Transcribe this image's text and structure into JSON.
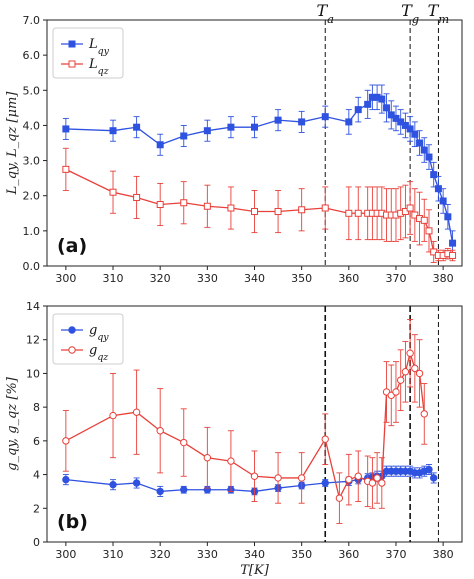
{
  "chart_data": [
    {
      "type": "line",
      "panel_label": "(a)",
      "ylabel": "L_qy, L_qz [μm]",
      "xlim": [
        296,
        384
      ],
      "ylim": [
        0,
        7
      ],
      "xticks": [
        300,
        310,
        320,
        330,
        340,
        350,
        360,
        370,
        380
      ],
      "yticks": [
        "0.0",
        "1.0",
        "2.0",
        "3.0",
        "4.0",
        "5.0",
        "6.0",
        "7.0"
      ],
      "legend_position": "top-left",
      "vlines": [
        {
          "x": 355,
          "label_main": "T",
          "label_sub": "a"
        },
        {
          "x": 373,
          "label_main": "T",
          "label_sub": "g"
        },
        {
          "x": 379,
          "label_main": "T",
          "label_sub": "m"
        }
      ],
      "series": [
        {
          "name_main": "L",
          "name_sub": "qy",
          "color": "#2f52e0",
          "marker": "square-filled",
          "x": [
            300,
            310,
            315,
            320,
            325,
            330,
            335,
            340,
            345,
            350,
            355,
            360,
            362,
            364,
            365,
            366,
            367,
            368,
            369,
            370,
            371,
            372,
            373,
            374,
            375,
            376,
            377,
            378,
            379,
            380,
            381,
            382
          ],
          "y": [
            3.9,
            3.85,
            3.95,
            3.45,
            3.7,
            3.85,
            3.95,
            3.95,
            4.15,
            4.1,
            4.25,
            4.1,
            4.45,
            4.6,
            4.8,
            4.8,
            4.75,
            4.5,
            4.3,
            4.2,
            4.1,
            4.0,
            3.9,
            3.75,
            3.5,
            3.3,
            3.1,
            2.6,
            2.2,
            1.85,
            1.4,
            0.65
          ],
          "err": [
            0.3,
            0.3,
            0.3,
            0.3,
            0.3,
            0.3,
            0.3,
            0.3,
            0.3,
            0.3,
            0.3,
            0.35,
            0.35,
            0.4,
            0.35,
            0.35,
            0.4,
            0.4,
            0.4,
            0.35,
            0.35,
            0.35,
            0.35,
            0.35,
            0.35,
            0.35,
            0.35,
            0.35,
            0.35,
            0.35,
            0.35,
            0.35
          ]
        },
        {
          "name_main": "L",
          "name_sub": "qz",
          "color": "#e8403a",
          "marker": "square-open",
          "x": [
            300,
            310,
            315,
            320,
            325,
            330,
            335,
            340,
            345,
            350,
            355,
            360,
            362,
            364,
            365,
            366,
            367,
            368,
            369,
            370,
            371,
            372,
            373,
            374,
            375,
            376,
            377,
            378,
            379,
            380,
            381,
            382
          ],
          "y": [
            2.75,
            2.1,
            1.95,
            1.75,
            1.8,
            1.7,
            1.65,
            1.55,
            1.55,
            1.6,
            1.65,
            1.5,
            1.5,
            1.5,
            1.5,
            1.5,
            1.5,
            1.45,
            1.45,
            1.45,
            1.5,
            1.55,
            1.65,
            1.45,
            1.35,
            1.3,
            1.0,
            0.4,
            0.3,
            0.3,
            0.35,
            0.3
          ],
          "err": [
            0.6,
            0.6,
            0.6,
            0.6,
            0.6,
            0.6,
            0.6,
            0.6,
            0.6,
            0.6,
            0.6,
            0.75,
            0.75,
            0.75,
            0.75,
            0.75,
            0.75,
            0.75,
            0.75,
            0.75,
            0.75,
            0.75,
            0.75,
            0.75,
            0.75,
            0.6,
            0.6,
            0.3,
            0.15,
            0.15,
            0.15,
            0.15
          ]
        }
      ]
    },
    {
      "type": "line",
      "panel_label": "(b)",
      "xlabel": "T[K]",
      "ylabel": "g_qy, g_qz [%]",
      "xlim": [
        296,
        384
      ],
      "ylim": [
        0,
        14
      ],
      "xticks": [
        300,
        310,
        320,
        330,
        340,
        350,
        360,
        370,
        380
      ],
      "yticks": [
        "0",
        "2",
        "4",
        "6",
        "8",
        "10",
        "12",
        "14"
      ],
      "legend_position": "top-left",
      "vlines": [
        {
          "x": 355,
          "style": "dashed-bold"
        },
        {
          "x": 373,
          "style": "dashed-bold"
        },
        {
          "x": 379,
          "style": "dashed"
        }
      ],
      "series": [
        {
          "name_main": "g",
          "name_sub": "qy",
          "color": "#2f52e0",
          "marker": "circle-filled",
          "x": [
            300,
            310,
            315,
            320,
            325,
            330,
            335,
            340,
            345,
            350,
            355,
            360,
            362,
            364,
            365,
            366,
            367,
            368,
            369,
            370,
            371,
            372,
            373,
            374,
            375,
            376,
            377,
            378
          ],
          "y": [
            3.7,
            3.4,
            3.5,
            3.0,
            3.1,
            3.1,
            3.1,
            3.0,
            3.2,
            3.35,
            3.5,
            3.6,
            3.7,
            3.8,
            3.85,
            3.9,
            3.9,
            4.2,
            4.2,
            4.2,
            4.2,
            4.2,
            4.2,
            4.1,
            4.1,
            4.2,
            4.3,
            3.8
          ],
          "err": [
            0.3,
            0.3,
            0.3,
            0.3,
            0.2,
            0.2,
            0.2,
            0.2,
            0.2,
            0.2,
            0.2,
            0.25,
            0.25,
            0.25,
            0.25,
            0.3,
            0.3,
            0.3,
            0.3,
            0.3,
            0.3,
            0.3,
            0.3,
            0.3,
            0.3,
            0.3,
            0.3,
            0.3
          ]
        },
        {
          "name_main": "g",
          "name_sub": "qz",
          "color": "#e8403a",
          "marker": "circle-open",
          "x": [
            300,
            310,
            315,
            320,
            325,
            330,
            335,
            340,
            345,
            350,
            355,
            358,
            360,
            362,
            364,
            365,
            366,
            367,
            368,
            369,
            370,
            371,
            372,
            373,
            374,
            375,
            376
          ],
          "y": [
            6.0,
            7.5,
            7.7,
            6.6,
            5.9,
            5.0,
            4.8,
            3.9,
            3.8,
            3.8,
            6.1,
            2.6,
            3.7,
            3.9,
            3.6,
            3.5,
            3.8,
            3.5,
            8.9,
            8.7,
            8.9,
            9.6,
            10.1,
            11.2,
            10.3,
            10.0,
            7.6
          ],
          "err": [
            1.8,
            2.5,
            2.5,
            2.5,
            2.0,
            1.8,
            1.8,
            1.5,
            1.5,
            1.5,
            1.5,
            1.5,
            1.5,
            1.5,
            1.5,
            1.5,
            1.5,
            1.5,
            1.8,
            1.8,
            1.8,
            1.8,
            1.8,
            2.0,
            2.0,
            2.0,
            1.8
          ]
        }
      ]
    }
  ]
}
